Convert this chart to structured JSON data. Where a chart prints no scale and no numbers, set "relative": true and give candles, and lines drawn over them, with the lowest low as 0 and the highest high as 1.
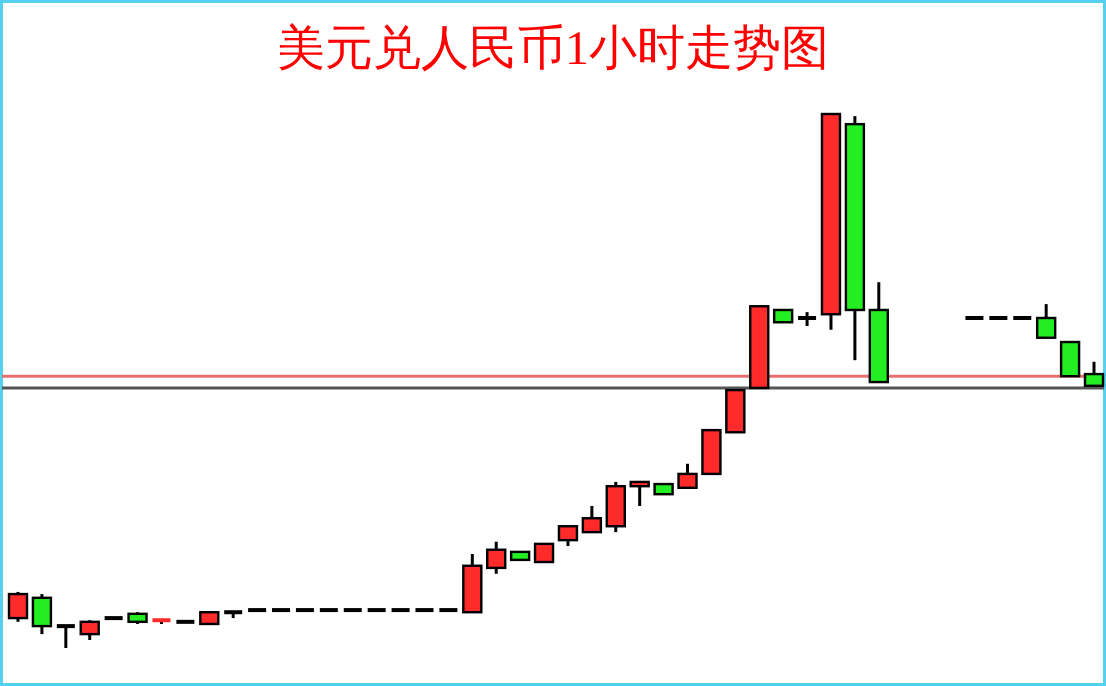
{
  "chart_data": {
    "type": "candlestick",
    "title": "美元兑人民币1小时走势图",
    "relative": true,
    "categories": [
      null,
      null,
      null,
      null,
      null,
      null,
      null,
      null,
      null,
      null,
      null,
      null,
      null,
      null,
      null,
      null,
      null,
      null,
      null,
      null,
      null,
      null,
      null,
      null,
      null,
      null,
      null,
      null,
      null,
      null,
      null,
      null,
      null,
      null,
      null,
      null,
      null,
      null,
      null,
      null,
      null,
      null,
      null,
      null,
      null,
      null
    ],
    "ohlc": [
      [
        0.056,
        0.105,
        0.049,
        0.101
      ],
      [
        0.094,
        0.101,
        0.026,
        0.041
      ],
      [
        0.041,
        0.041,
        0,
        0.041
      ],
      [
        0.026,
        0.052,
        0.015,
        0.049
      ],
      [
        0.056,
        0.056,
        0.056,
        0.056
      ],
      [
        0.064,
        0.067,
        0.045,
        0.049
      ],
      [
        0.045,
        0.052,
        0.045,
        0.052
      ],
      [
        0.049,
        0.049,
        0.049,
        0.049
      ],
      [
        0.045,
        0.067,
        0.045,
        0.067
      ],
      [
        0.067,
        0.067,
        0.056,
        0.067
      ],
      [
        0.071,
        0.071,
        0.071,
        0.071
      ],
      [
        0.071,
        0.071,
        0.071,
        0.071
      ],
      [
        0.071,
        0.071,
        0.071,
        0.071
      ],
      [
        0.071,
        0.071,
        0.071,
        0.071
      ],
      [
        0.071,
        0.071,
        0.071,
        0.071
      ],
      [
        0.071,
        0.071,
        0.071,
        0.071
      ],
      [
        0.071,
        0.071,
        0.071,
        0.071
      ],
      [
        0.071,
        0.071,
        0.071,
        0.071
      ],
      [
        0.071,
        0.071,
        0.071,
        0.071
      ],
      [
        0.067,
        0.176,
        0.067,
        0.154
      ],
      [
        0.15,
        0.199,
        0.139,
        0.184
      ],
      [
        0.18,
        0.18,
        0.165,
        0.165
      ],
      [
        0.161,
        0.195,
        0.161,
        0.195
      ],
      [
        0.202,
        0.228,
        0.191,
        0.228
      ],
      [
        0.217,
        0.266,
        0.217,
        0.243
      ],
      [
        0.228,
        0.311,
        0.217,
        0.303
      ],
      [
        0.303,
        0.311,
        0.266,
        0.311
      ],
      [
        0.307,
        0.307,
        0.288,
        0.288
      ],
      [
        0.3,
        0.345,
        0.3,
        0.326
      ],
      [
        0.326,
        0.408,
        0.326,
        0.408
      ],
      [
        0.404,
        0.483,
        0.404,
        0.483
      ],
      [
        0.487,
        0.64,
        0.487,
        0.64
      ],
      [
        0.633,
        0.633,
        0.61,
        0.61
      ],
      [
        0.618,
        0.629,
        0.603,
        0.618
      ],
      [
        0.625,
        1,
        0.596,
        1
      ],
      [
        0.981,
        0.996,
        0.539,
        0.633
      ],
      [
        0.633,
        0.685,
        0.498,
        0.498
      ],
      null,
      null,
      null,
      [
        0.618,
        0.618,
        0.618,
        0.618
      ],
      [
        0.618,
        0.618,
        0.618,
        0.618
      ],
      [
        0.618,
        0.618,
        0.618,
        0.618
      ],
      [
        0.618,
        0.644,
        0.581,
        0.581
      ],
      [
        0.573,
        0.573,
        0.509,
        0.509
      ],
      [
        0.513,
        0.536,
        0.491,
        0.491
      ]
    ],
    "colors": [
      "#ff2a2a",
      "#22ee22",
      "#000000",
      "#ff2a2a",
      "#000000",
      "#22ee22",
      "#ff2a2a",
      "#000000",
      "#ff2a2a",
      "#000000",
      "#000000",
      "#000000",
      "#000000",
      "#000000",
      "#000000",
      "#000000",
      "#000000",
      "#000000",
      "#000000",
      "#ff2a2a",
      "#ff2a2a",
      "#22ee22",
      "#ff2a2a",
      "#ff2a2a",
      "#ff2a2a",
      "#ff2a2a",
      "#ff2a2a",
      "#22ee22",
      "#ff2a2a",
      "#ff2a2a",
      "#ff2a2a",
      "#ff2a2a",
      "#22ee22",
      "#000000",
      "#ff2a2a",
      "#22ee22",
      "#22ee22",
      null,
      null,
      null,
      "#000000",
      "#000000",
      "#000000",
      "#22ee22",
      "#22ee22",
      "#22ee22"
    ],
    "ref_lines": [
      {
        "axis": "y",
        "value": 0.509,
        "color": "#e87070"
      },
      {
        "axis": "y",
        "value": 0.487,
        "color": "#555555"
      }
    ]
  }
}
